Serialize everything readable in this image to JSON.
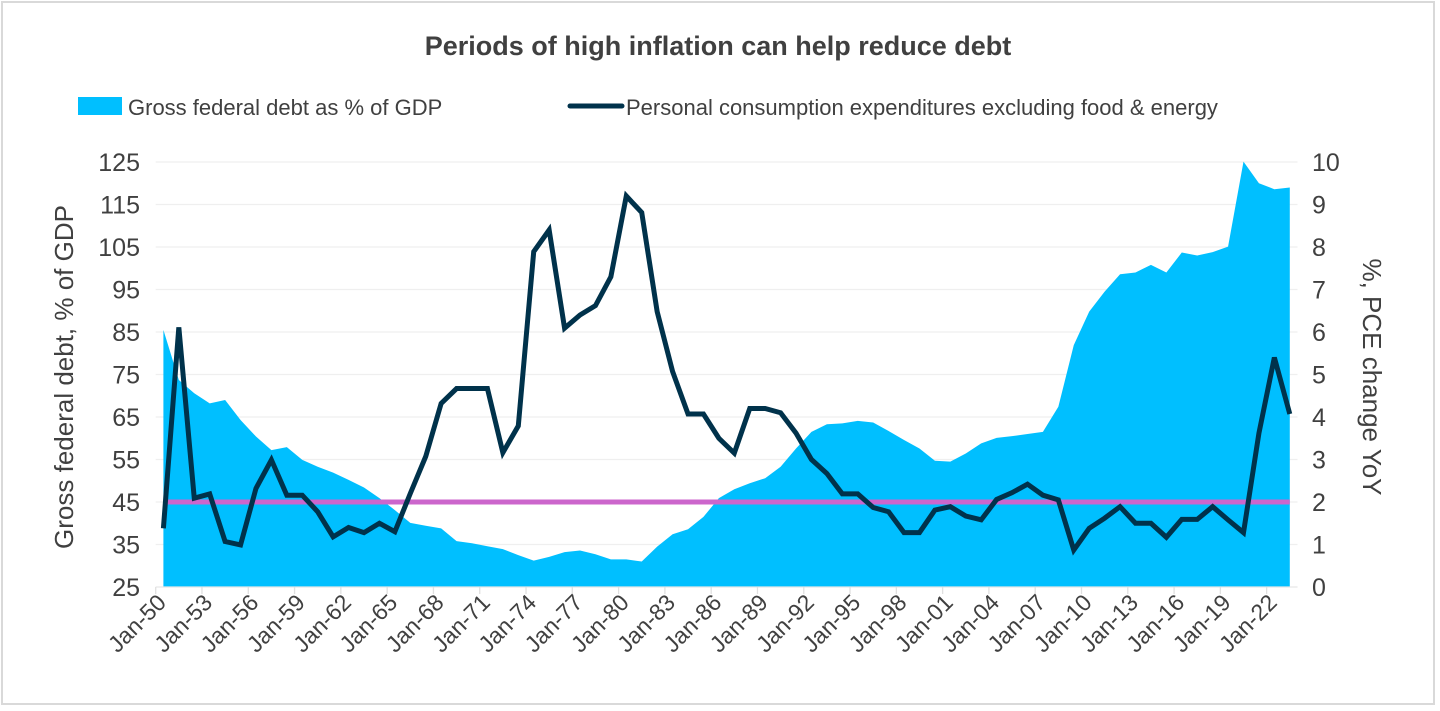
{
  "chart_data": {
    "type": "area+line",
    "title": "Periods of high inflation can help reduce debt",
    "ylabel_left": "Gross federal debt, % of GDP",
    "ylabel_right": "%, PCE change YoY",
    "ylim_left": [
      25,
      125
    ],
    "ylim_right": [
      0,
      10
    ],
    "yticks_left": [
      25,
      35,
      45,
      55,
      65,
      75,
      85,
      95,
      105,
      115,
      125
    ],
    "yticks_right": [
      0,
      1,
      2,
      3,
      4,
      5,
      6,
      7,
      8,
      9,
      10
    ],
    "grid": true,
    "legend_placement": "top",
    "x": [
      "Jan-50",
      "Jan-51",
      "Jan-52",
      "Jan-53",
      "Jan-54",
      "Jan-55",
      "Jan-56",
      "Jan-57",
      "Jan-58",
      "Jan-59",
      "Jan-60",
      "Jan-61",
      "Jan-62",
      "Jan-63",
      "Jan-64",
      "Jan-65",
      "Jan-66",
      "Jan-67",
      "Jan-68",
      "Jan-69",
      "Jan-70",
      "Jan-71",
      "Jan-72",
      "Jan-73",
      "Jan-74",
      "Jan-75",
      "Jan-76",
      "Jan-77",
      "Jan-78",
      "Jan-79",
      "Jan-80",
      "Jan-81",
      "Jan-82",
      "Jan-83",
      "Jan-84",
      "Jan-85",
      "Jan-86",
      "Jan-87",
      "Jan-88",
      "Jan-89",
      "Jan-90",
      "Jan-91",
      "Jan-92",
      "Jan-93",
      "Jan-94",
      "Jan-95",
      "Jan-96",
      "Jan-97",
      "Jan-98",
      "Jan-99",
      "Jan-00",
      "Jan-01",
      "Jan-02",
      "Jan-03",
      "Jan-04",
      "Jan-05",
      "Jan-06",
      "Jan-07",
      "Jan-08",
      "Jan-09",
      "Jan-10",
      "Jan-11",
      "Jan-12",
      "Jan-13",
      "Jan-14",
      "Jan-15",
      "Jan-16",
      "Jan-17",
      "Jan-18",
      "Jan-19",
      "Jan-20",
      "Jan-21",
      "Jan-22",
      "Jan-23"
    ],
    "xtick_labels": [
      "Jan-50",
      "Jan-53",
      "Jan-56",
      "Jan-59",
      "Jan-62",
      "Jan-65",
      "Jan-68",
      "Jan-71",
      "Jan-74",
      "Jan-77",
      "Jan-80",
      "Jan-83",
      "Jan-86",
      "Jan-89",
      "Jan-92",
      "Jan-95",
      "Jan-98",
      "Jan-01",
      "Jan-04",
      "Jan-07",
      "Jan-10",
      "Jan-13",
      "Jan-16",
      "Jan-19",
      "Jan-22"
    ],
    "series": [
      {
        "name": "Gross federal debt as % of GDP",
        "type": "area",
        "axis": "left",
        "color": "#00BFFF",
        "values": [
          85.5,
          73.7,
          70.6,
          68.2,
          69.0,
          64.3,
          60.4,
          57.2,
          57.9,
          54.9,
          53.3,
          51.9,
          50.2,
          48.4,
          45.9,
          43.1,
          40.1,
          39.4,
          38.8,
          35.8,
          35.3,
          34.6,
          33.9,
          32.5,
          31.2,
          32.1,
          33.2,
          33.6,
          32.7,
          31.5,
          31.5,
          31.0,
          34.5,
          37.4,
          38.6,
          41.5,
          45.9,
          48.0,
          49.4,
          50.6,
          53.3,
          57.6,
          61.5,
          63.3,
          63.5,
          64.1,
          63.7,
          61.7,
          59.6,
          57.6,
          54.7,
          54.5,
          56.4,
          58.8,
          60.1,
          60.5,
          61.0,
          61.5,
          67.4,
          81.9,
          89.8,
          94.5,
          98.6,
          99.0,
          100.8,
          99.0,
          103.7,
          103.0,
          103.8,
          105.1,
          125.1,
          120.0,
          118.6,
          119.0
        ]
      },
      {
        "name": "Personal consumption expenditures excluding food & energy",
        "type": "line",
        "axis": "right",
        "color": "#00324B",
        "values": [
          1.38,
          6.11,
          2.09,
          2.19,
          1.07,
          0.99,
          2.32,
          2.99,
          2.16,
          2.16,
          1.77,
          1.18,
          1.4,
          1.28,
          1.5,
          1.3,
          2.2,
          3.07,
          4.32,
          4.67,
          4.67,
          4.67,
          3.16,
          3.79,
          7.89,
          8.4,
          6.09,
          6.4,
          6.62,
          7.3,
          9.2,
          8.81,
          6.48,
          5.07,
          4.07,
          4.07,
          3.5,
          3.15,
          4.2,
          4.2,
          4.1,
          3.62,
          3.0,
          2.67,
          2.19,
          2.19,
          1.87,
          1.77,
          1.28,
          1.28,
          1.81,
          1.89,
          1.67,
          1.58,
          2.06,
          2.22,
          2.42,
          2.16,
          2.05,
          0.87,
          1.38,
          1.62,
          1.89,
          1.5,
          1.5,
          1.17,
          1.59,
          1.59,
          1.89,
          1.58,
          1.28,
          3.62,
          5.4,
          4.07
        ]
      }
    ],
    "reference_line": {
      "axis": "right",
      "value": 2,
      "color": "#CC66CC"
    }
  }
}
